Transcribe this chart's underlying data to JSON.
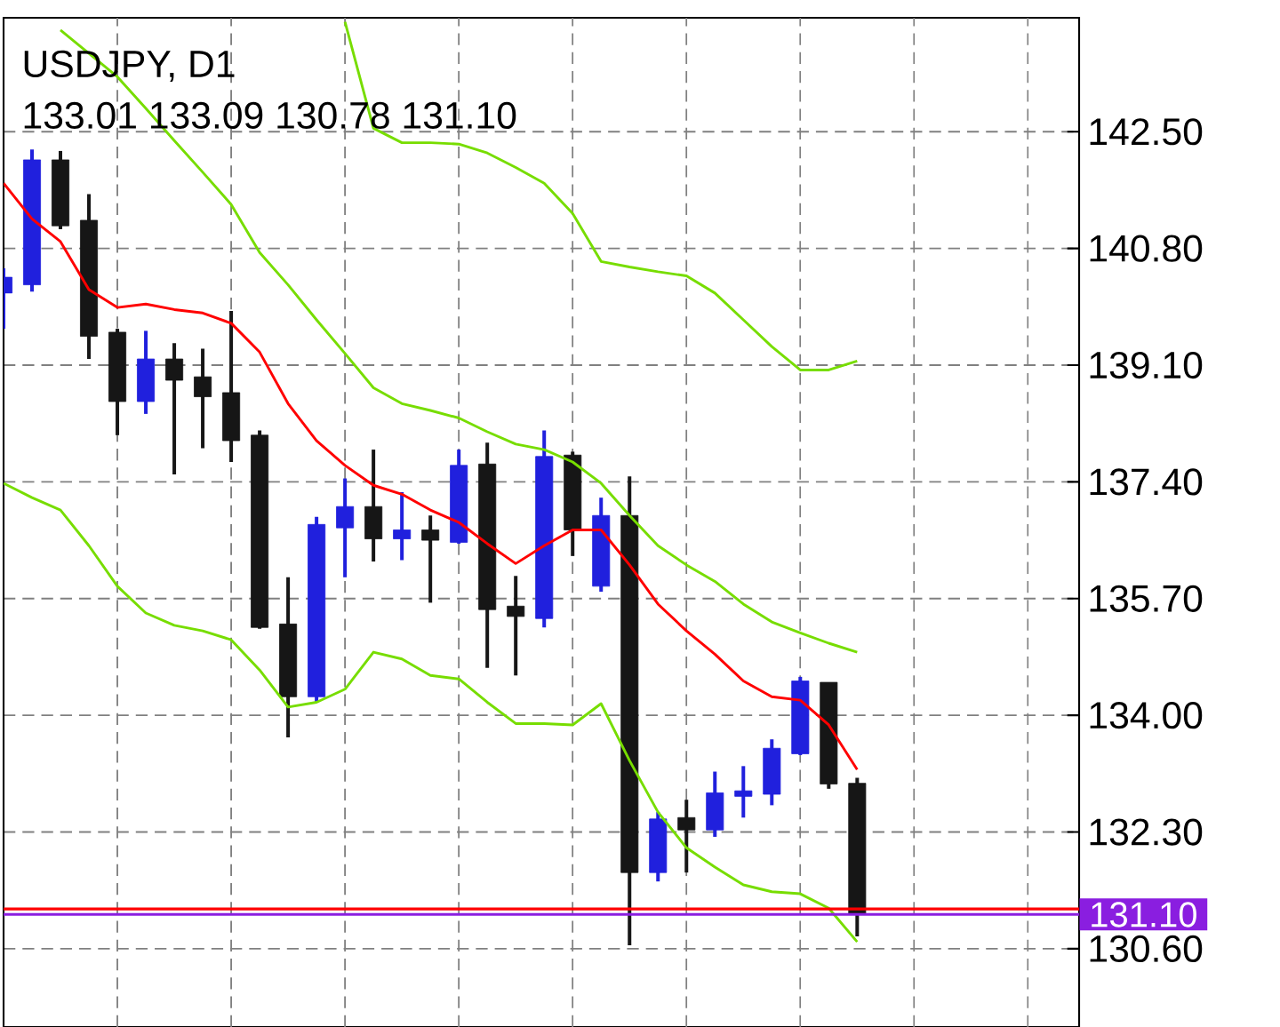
{
  "chart_data": {
    "type": "candlestick",
    "title": "USDJPY, D1",
    "subtitle": "133.01 133.09 130.78 131.10",
    "categories": [
      null,
      null,
      null,
      null,
      null,
      null,
      null,
      null,
      null,
      null,
      null,
      null,
      null,
      null,
      null,
      null,
      null,
      null,
      null,
      null,
      null,
      null,
      null,
      null,
      null,
      null,
      null,
      null,
      null,
      null,
      null
    ],
    "ohlc": [
      [
        140.15,
        140.51,
        139.63,
        140.38
      ],
      [
        140.27,
        142.24,
        140.17,
        142.09
      ],
      [
        142.09,
        142.22,
        141.08,
        141.13
      ],
      [
        141.21,
        141.59,
        139.19,
        139.52
      ],
      [
        139.58,
        139.63,
        138.08,
        138.57
      ],
      [
        138.57,
        139.6,
        138.39,
        139.19
      ],
      [
        139.19,
        139.42,
        137.51,
        138.88
      ],
      [
        138.93,
        139.34,
        137.89,
        138.64
      ],
      [
        138.7,
        139.89,
        137.69,
        138.0
      ],
      [
        138.08,
        138.15,
        135.26,
        135.28
      ],
      [
        135.33,
        136.01,
        133.68,
        134.27
      ],
      [
        134.27,
        136.89,
        134.19,
        136.78
      ],
      [
        136.73,
        137.45,
        136.01,
        137.04
      ],
      [
        137.04,
        137.87,
        136.24,
        136.57
      ],
      [
        136.57,
        137.25,
        136.26,
        136.7
      ],
      [
        136.7,
        136.91,
        135.64,
        136.55
      ],
      [
        136.52,
        137.87,
        136.5,
        137.64
      ],
      [
        137.66,
        137.97,
        134.69,
        135.54
      ],
      [
        135.59,
        136.03,
        134.58,
        135.44
      ],
      [
        135.41,
        138.15,
        135.28,
        137.77
      ],
      [
        137.79,
        137.84,
        136.32,
        136.7
      ],
      [
        135.88,
        137.17,
        135.8,
        136.91
      ],
      [
        136.91,
        137.48,
        130.65,
        131.71
      ],
      [
        131.71,
        132.59,
        131.58,
        132.49
      ],
      [
        132.51,
        132.77,
        131.71,
        132.33
      ],
      [
        132.33,
        133.18,
        132.23,
        132.87
      ],
      [
        132.82,
        133.26,
        132.51,
        132.9
      ],
      [
        132.85,
        133.65,
        132.69,
        133.52
      ],
      [
        133.44,
        134.56,
        133.42,
        134.5
      ],
      [
        134.48,
        134.48,
        132.93,
        133.0
      ],
      [
        133.01,
        133.09,
        130.78,
        131.1
      ]
    ],
    "colors": [
      "#2020dd",
      "#2020dd",
      "#161616",
      "#161616",
      "#161616",
      "#2020dd",
      "#161616",
      "#161616",
      "#161616",
      "#161616",
      "#161616",
      "#2020dd",
      "#2020dd",
      "#161616",
      "#2020dd",
      "#161616",
      "#2020dd",
      "#161616",
      "#161616",
      "#2020dd",
      "#161616",
      "#2020dd",
      "#161616",
      "#2020dd",
      "#161616",
      "#2020dd",
      "#2020dd",
      "#2020dd",
      "#2020dd",
      "#161616",
      "#161616"
    ],
    "series": [
      {
        "type": "line",
        "color": "#ff0000",
        "values": [
          141.75,
          141.23,
          140.9,
          140.2,
          139.94,
          139.99,
          139.91,
          139.86,
          139.71,
          139.29,
          138.54,
          138.0,
          137.64,
          137.35,
          137.22,
          136.99,
          136.81,
          136.5,
          136.21,
          136.47,
          136.7,
          136.7,
          136.19,
          135.62,
          135.23,
          134.89,
          134.5,
          134.27,
          134.22,
          133.86,
          133.21
        ]
      },
      {
        "type": "line",
        "color": "#77dd00",
        "values": [
          null,
          null,
          null,
          null,
          null,
          null,
          null,
          null,
          null,
          null,
          null,
          null,
          144.1,
          142.55,
          142.34,
          142.34,
          142.32,
          142.19,
          141.98,
          141.75,
          141.31,
          140.61,
          140.53,
          140.46,
          140.4,
          140.15,
          139.76,
          139.37,
          139.03,
          139.03,
          139.16
        ]
      },
      {
        "type": "line",
        "color": "#77dd00",
        "values": [
          null,
          null,
          143.98,
          143.64,
          143.3,
          142.84,
          142.37,
          141.91,
          141.44,
          140.74,
          140.27,
          139.76,
          139.27,
          138.77,
          138.54,
          138.44,
          138.33,
          138.13,
          137.95,
          137.87,
          137.69,
          137.38,
          136.91,
          136.47,
          136.19,
          135.95,
          135.62,
          135.36,
          135.2,
          135.05,
          134.92
        ]
      },
      {
        "type": "line",
        "color": "#77dd00",
        "values": [
          137.38,
          137.17,
          136.99,
          136.47,
          135.88,
          135.49,
          135.31,
          135.23,
          135.1,
          134.66,
          134.12,
          134.19,
          134.38,
          134.92,
          134.82,
          134.58,
          134.53,
          134.19,
          133.88,
          133.88,
          133.86,
          134.17,
          133.34,
          132.59,
          132.07,
          131.79,
          131.53,
          131.43,
          131.4,
          131.19,
          130.7
        ]
      }
    ],
    "ref_lines": [
      {
        "axis": "y",
        "value": 131.18,
        "color": "#ff0000"
      },
      {
        "axis": "y",
        "value": 131.1,
        "color": "#8a1ee0",
        "label": "131.10"
      }
    ],
    "ylim": [
      129.46,
      144.16
    ],
    "yticks": [
      {
        "value": 130.6,
        "label": "130.60"
      },
      {
        "value": 132.3,
        "label": "132.30"
      },
      {
        "value": 134.0,
        "label": "134.00"
      },
      {
        "value": 135.7,
        "label": "135.70"
      },
      {
        "value": 137.4,
        "label": "137.40"
      },
      {
        "value": 139.1,
        "label": "139.10"
      },
      {
        "value": 140.8,
        "label": "140.80"
      },
      {
        "value": 142.5,
        "label": "142.50"
      }
    ],
    "tick_labels": "y",
    "grid": true
  }
}
